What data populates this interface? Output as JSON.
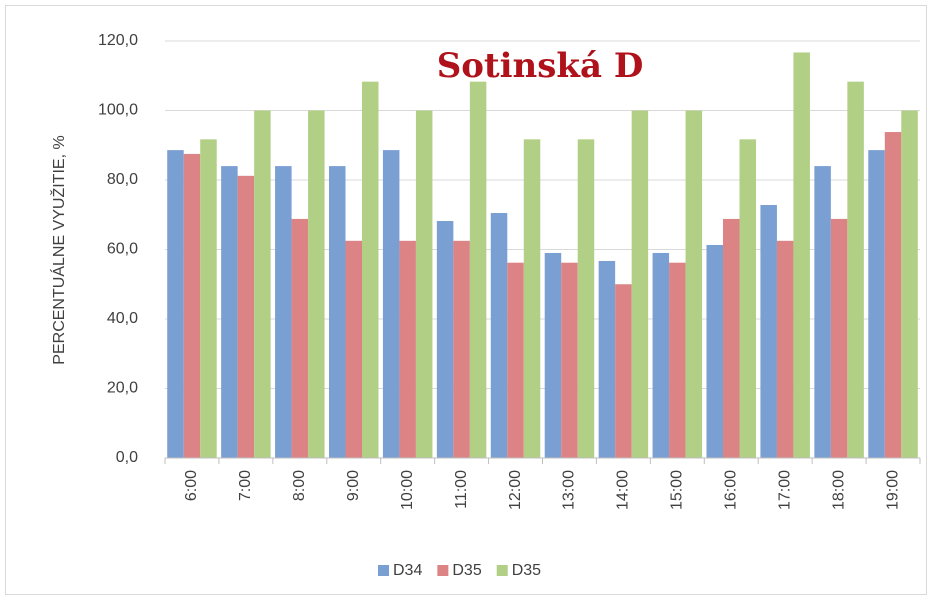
{
  "chart_data": {
    "type": "bar",
    "title": "Sotinská D",
    "y_label": "PERCENTUÁLNE VYUŽITIE, %",
    "categories": [
      "6:00",
      "7:00",
      "8:00",
      "9:00",
      "10:00",
      "11:00",
      "12:00",
      "13:00",
      "14:00",
      "15:00",
      "16:00",
      "17:00",
      "18:00",
      "19:00"
    ],
    "series": [
      {
        "name": "D34",
        "color": "#7a9fd3",
        "values": [
          88.6,
          84.0,
          84.0,
          84.0,
          88.6,
          68.2,
          70.5,
          59.0,
          56.7,
          59.0,
          61.3,
          72.8,
          84.0,
          88.6
        ]
      },
      {
        "name": "D35",
        "color": "#dc8386",
        "values": [
          87.5,
          81.2,
          68.8,
          62.5,
          62.5,
          62.5,
          56.2,
          56.2,
          50.0,
          56.2,
          68.8,
          62.5,
          68.8,
          93.8
        ]
      },
      {
        "name": "D35",
        "color": "#b2cf86",
        "values": [
          91.7,
          100.0,
          100.0,
          108.3,
          100.0,
          108.3,
          91.7,
          91.7,
          100.0,
          100.0,
          91.7,
          116.7,
          108.3,
          100.0
        ]
      }
    ],
    "ylim": [
      0,
      120
    ],
    "yticks": [
      {
        "value": 0,
        "label": "0,0"
      },
      {
        "value": 20,
        "label": "20,0"
      },
      {
        "value": 40,
        "label": "40,0"
      },
      {
        "value": 60,
        "label": "60,0"
      },
      {
        "value": 80,
        "label": "80,0"
      },
      {
        "value": 100,
        "label": "100,0"
      },
      {
        "value": 120,
        "label": "120,0"
      }
    ],
    "grid": true,
    "legend": "bottom"
  }
}
